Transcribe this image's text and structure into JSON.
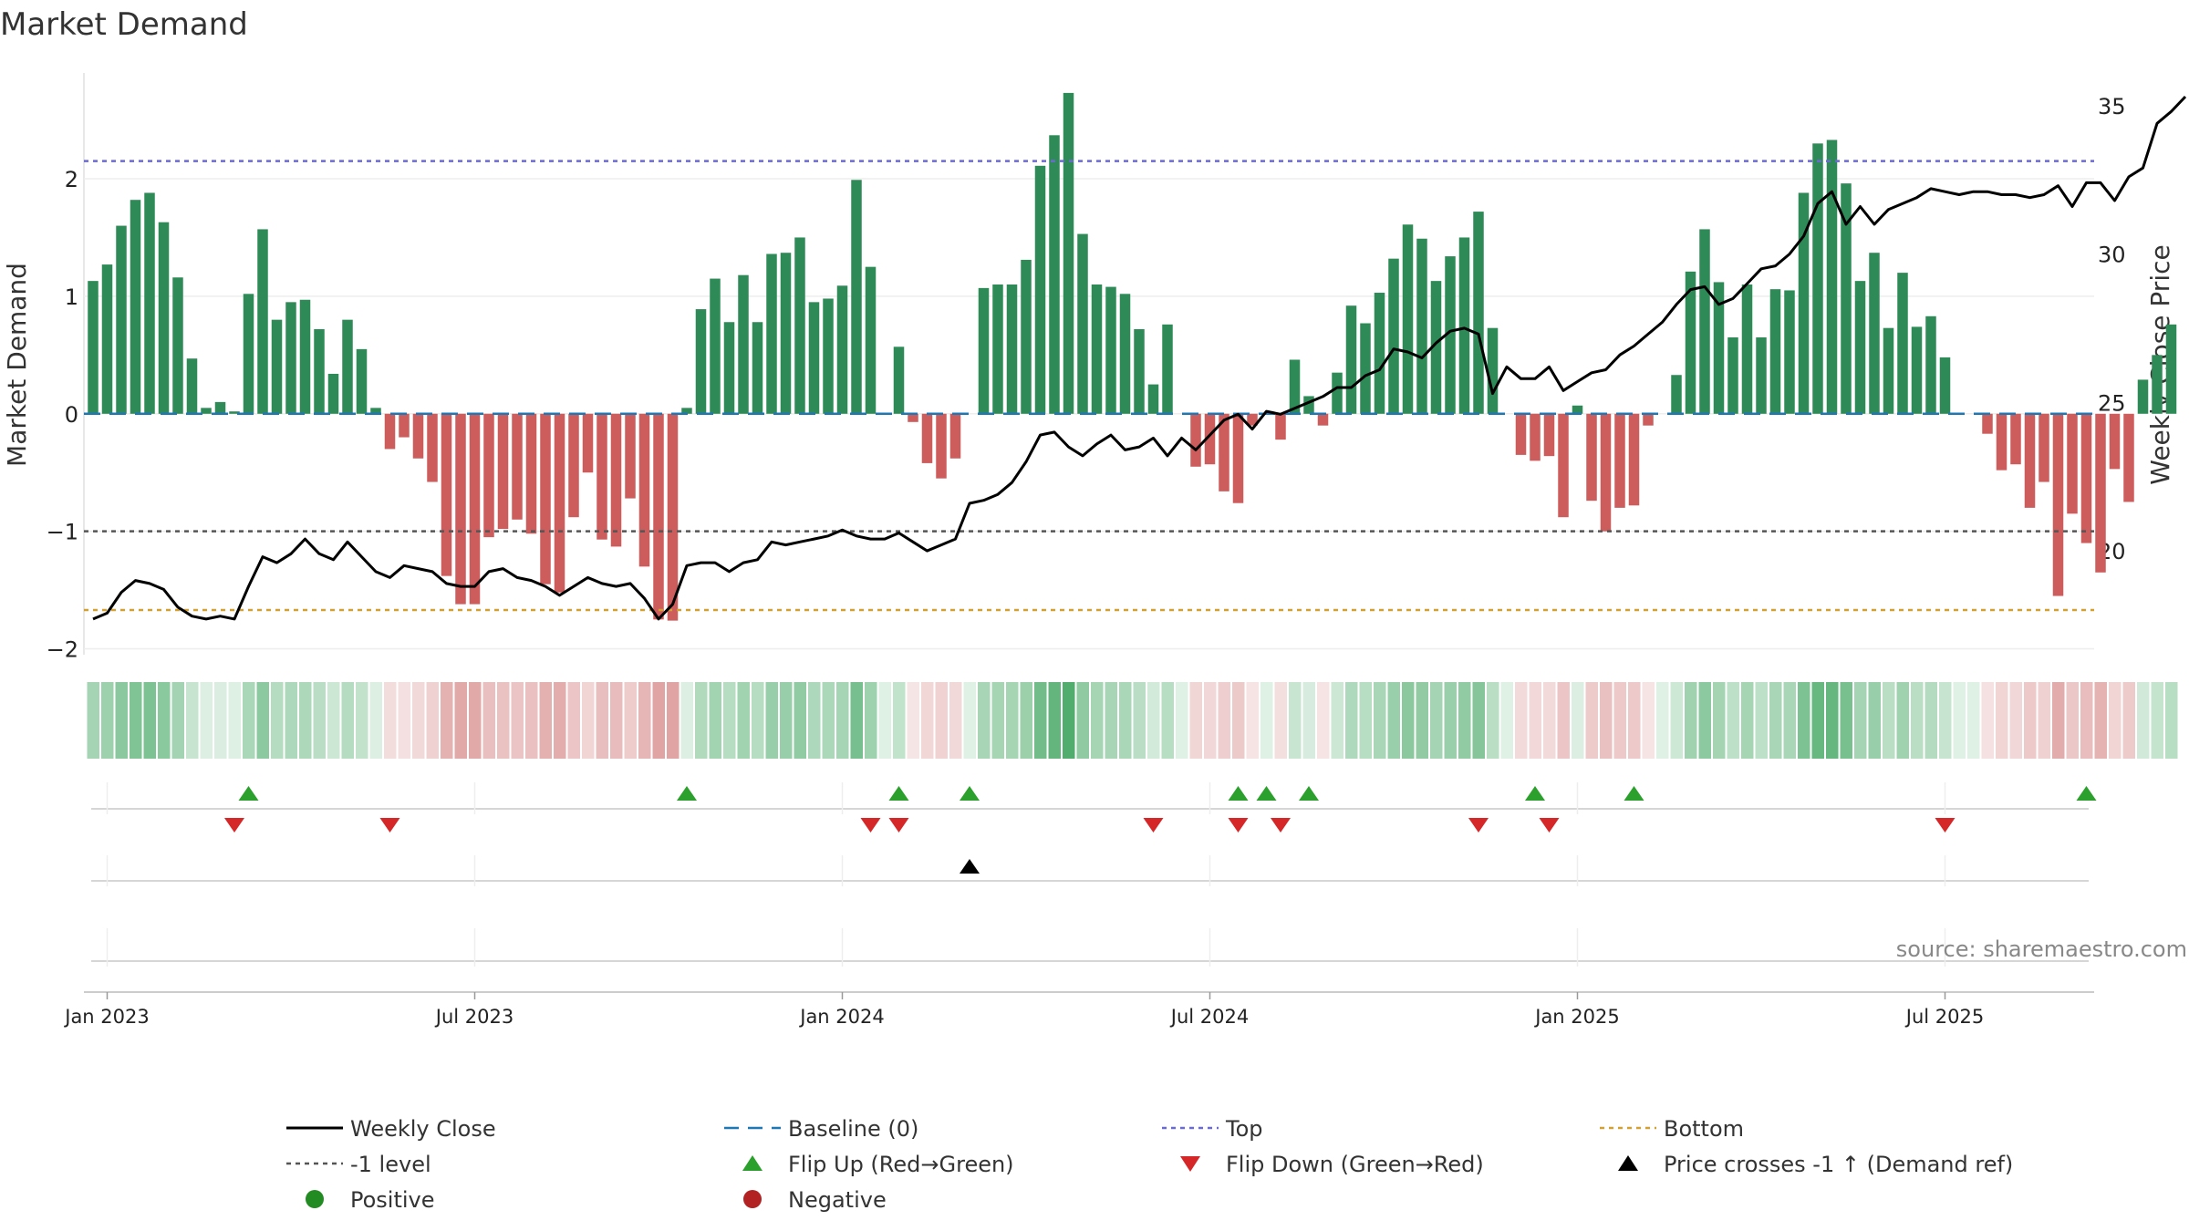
{
  "chart_data": {
    "type": "bar",
    "title": "Market Demand",
    "ylabel_left": "Market Demand",
    "ylabel_right": "Weekly Close Price",
    "source": "source: sharemaestro.com",
    "left_axis": {
      "ylim": [
        -2.05,
        2.9
      ],
      "ticks": [
        -2,
        -1,
        0,
        1,
        2
      ],
      "tick_labels": [
        "−2",
        "−1",
        "0",
        "1",
        "2"
      ]
    },
    "right_axis": {
      "ylim": [
        16.5,
        36.1
      ],
      "ticks": [
        20,
        25,
        30,
        35
      ],
      "tick_labels": [
        "20",
        "25",
        "30",
        "35"
      ]
    },
    "x_axis": {
      "start_week": "2022-12-26",
      "tick_labels": [
        "Jan 2023",
        "Jul 2023",
        "Jan 2024",
        "Jul 2024",
        "Jan 2025",
        "Jul 2025"
      ],
      "tick_week_index": [
        1,
        27,
        53,
        79,
        105,
        131
      ]
    },
    "levels": {
      "top": 2.15,
      "minus_one": -1,
      "bottom": -1.67,
      "baseline": 0
    },
    "colors": {
      "positive_bar": "#2e8b57",
      "negative_bar": "#cd5c5c",
      "weekly_close": "#000000",
      "baseline": "#1f77b4",
      "top": "#6a6ad0",
      "minus_one": "#555555",
      "bottom": "#d4a030",
      "flip_up": "#2ca02c",
      "flip_down": "#d62728",
      "cross": "#000000",
      "positive_dot": "#228b22",
      "negative_dot": "#b22222"
    },
    "demand": [
      1.13,
      1.27,
      1.6,
      1.82,
      1.88,
      1.63,
      1.16,
      0.47,
      0.05,
      0.1,
      0.02,
      1.02,
      1.57,
      0.8,
      0.95,
      0.97,
      0.72,
      0.34,
      0.8,
      0.55,
      0.05,
      -0.3,
      -0.2,
      -0.38,
      -0.58,
      -1.38,
      -1.62,
      -1.62,
      -1.05,
      -0.98,
      -0.9,
      -1.02,
      -1.45,
      -1.52,
      -0.88,
      -0.5,
      -1.07,
      -1.13,
      -0.72,
      -1.3,
      -1.75,
      -1.76,
      0.05,
      0.89,
      1.15,
      0.78,
      1.18,
      0.78,
      1.36,
      1.37,
      1.5,
      0.95,
      0.98,
      1.09,
      1.99,
      1.25,
      0.0,
      0.57,
      -0.07,
      -0.42,
      -0.55,
      -0.38,
      0.0,
      1.07,
      1.1,
      1.1,
      1.31,
      2.11,
      2.37,
      2.73,
      1.53,
      1.1,
      1.08,
      1.02,
      0.72,
      0.25,
      0.76,
      0.0,
      -0.45,
      -0.43,
      -0.66,
      -0.76,
      -0.1,
      0.0,
      -0.22,
      0.46,
      0.15,
      -0.1,
      0.35,
      0.92,
      0.77,
      1.03,
      1.32,
      1.61,
      1.49,
      1.13,
      1.34,
      1.5,
      1.72,
      0.73,
      0.0,
      -0.35,
      -0.4,
      -0.36,
      -0.88,
      0.07,
      -0.74,
      -1.0,
      -0.8,
      -0.78,
      -0.1,
      0.0,
      0.33,
      1.21,
      1.57,
      1.12,
      0.65,
      1.1,
      0.65,
      1.06,
      1.05,
      1.88,
      2.3,
      2.33,
      1.96,
      1.13,
      1.37,
      0.73,
      1.2,
      0.74,
      0.83,
      0.48,
      0.0,
      0.0,
      -0.17,
      -0.48,
      -0.43,
      -0.8,
      -0.58,
      -1.55,
      -0.85,
      -1.1,
      -1.35,
      -0.47,
      -0.75,
      0.29,
      0.5,
      0.76
    ],
    "weekly_close": [
      17.7,
      17.9,
      18.6,
      19.0,
      18.9,
      18.7,
      18.1,
      17.8,
      17.7,
      17.8,
      17.7,
      18.8,
      19.8,
      19.6,
      19.9,
      20.4,
      19.9,
      19.7,
      20.3,
      19.8,
      19.3,
      19.1,
      19.5,
      19.4,
      19.3,
      18.9,
      18.8,
      18.8,
      19.3,
      19.4,
      19.1,
      19.0,
      18.8,
      18.5,
      18.8,
      19.1,
      18.9,
      18.8,
      18.9,
      18.4,
      17.7,
      18.2,
      19.5,
      19.6,
      19.6,
      19.3,
      19.6,
      19.7,
      20.3,
      20.2,
      20.3,
      20.4,
      20.5,
      20.7,
      20.5,
      20.4,
      20.4,
      20.6,
      20.3,
      20.0,
      20.2,
      20.4,
      21.6,
      21.7,
      21.9,
      22.3,
      23.0,
      23.9,
      24.0,
      23.5,
      23.2,
      23.6,
      23.9,
      23.4,
      23.5,
      23.8,
      23.2,
      23.8,
      23.4,
      23.9,
      24.4,
      24.6,
      24.1,
      24.7,
      24.6,
      24.8,
      25.0,
      25.2,
      25.5,
      25.5,
      25.9,
      26.1,
      26.8,
      26.7,
      26.5,
      27.0,
      27.4,
      27.5,
      27.3,
      25.3,
      26.2,
      25.8,
      25.8,
      26.2,
      25.4,
      25.7,
      26.0,
      26.1,
      26.6,
      26.9,
      27.3,
      27.7,
      28.3,
      28.8,
      28.9,
      28.3,
      28.5,
      29.0,
      29.5,
      29.6,
      30.0,
      30.6,
      31.7,
      32.1,
      31.0,
      31.6,
      31.0,
      31.5,
      31.7,
      31.9,
      32.2,
      32.1,
      32.0,
      32.1,
      32.1,
      32.0,
      32.0,
      31.9,
      32.0,
      32.3,
      31.6,
      32.4,
      32.4,
      31.8,
      32.6,
      32.9,
      34.4,
      34.8,
      35.3
    ],
    "flip_up_idx": [
      11,
      42,
      57,
      62,
      81,
      83,
      86,
      102,
      109,
      141
    ],
    "flip_down_idx": [
      10,
      21,
      55,
      57,
      75,
      81,
      84,
      98,
      103,
      131
    ],
    "cross_idx": [
      62
    ],
    "legend": [
      {
        "label": "Weekly Close",
        "marker": "line"
      },
      {
        "label": "Baseline (0)",
        "marker": "dash-blue"
      },
      {
        "label": "Top",
        "marker": "dot-purple"
      },
      {
        "label": "Bottom",
        "marker": "dot-gold"
      },
      {
        "label": "-1 level",
        "marker": "dot-gray"
      },
      {
        "label": "Flip Up (Red→Green)",
        "marker": "tri-up-green"
      },
      {
        "label": "Flip Down (Green→Red)",
        "marker": "tri-down-red"
      },
      {
        "label": "Price crosses -1 ↑ (Demand ref)",
        "marker": "tri-up-black"
      },
      {
        "label": "Positive",
        "marker": "dot-green"
      },
      {
        "label": "Negative",
        "marker": "dot-red"
      }
    ]
  }
}
